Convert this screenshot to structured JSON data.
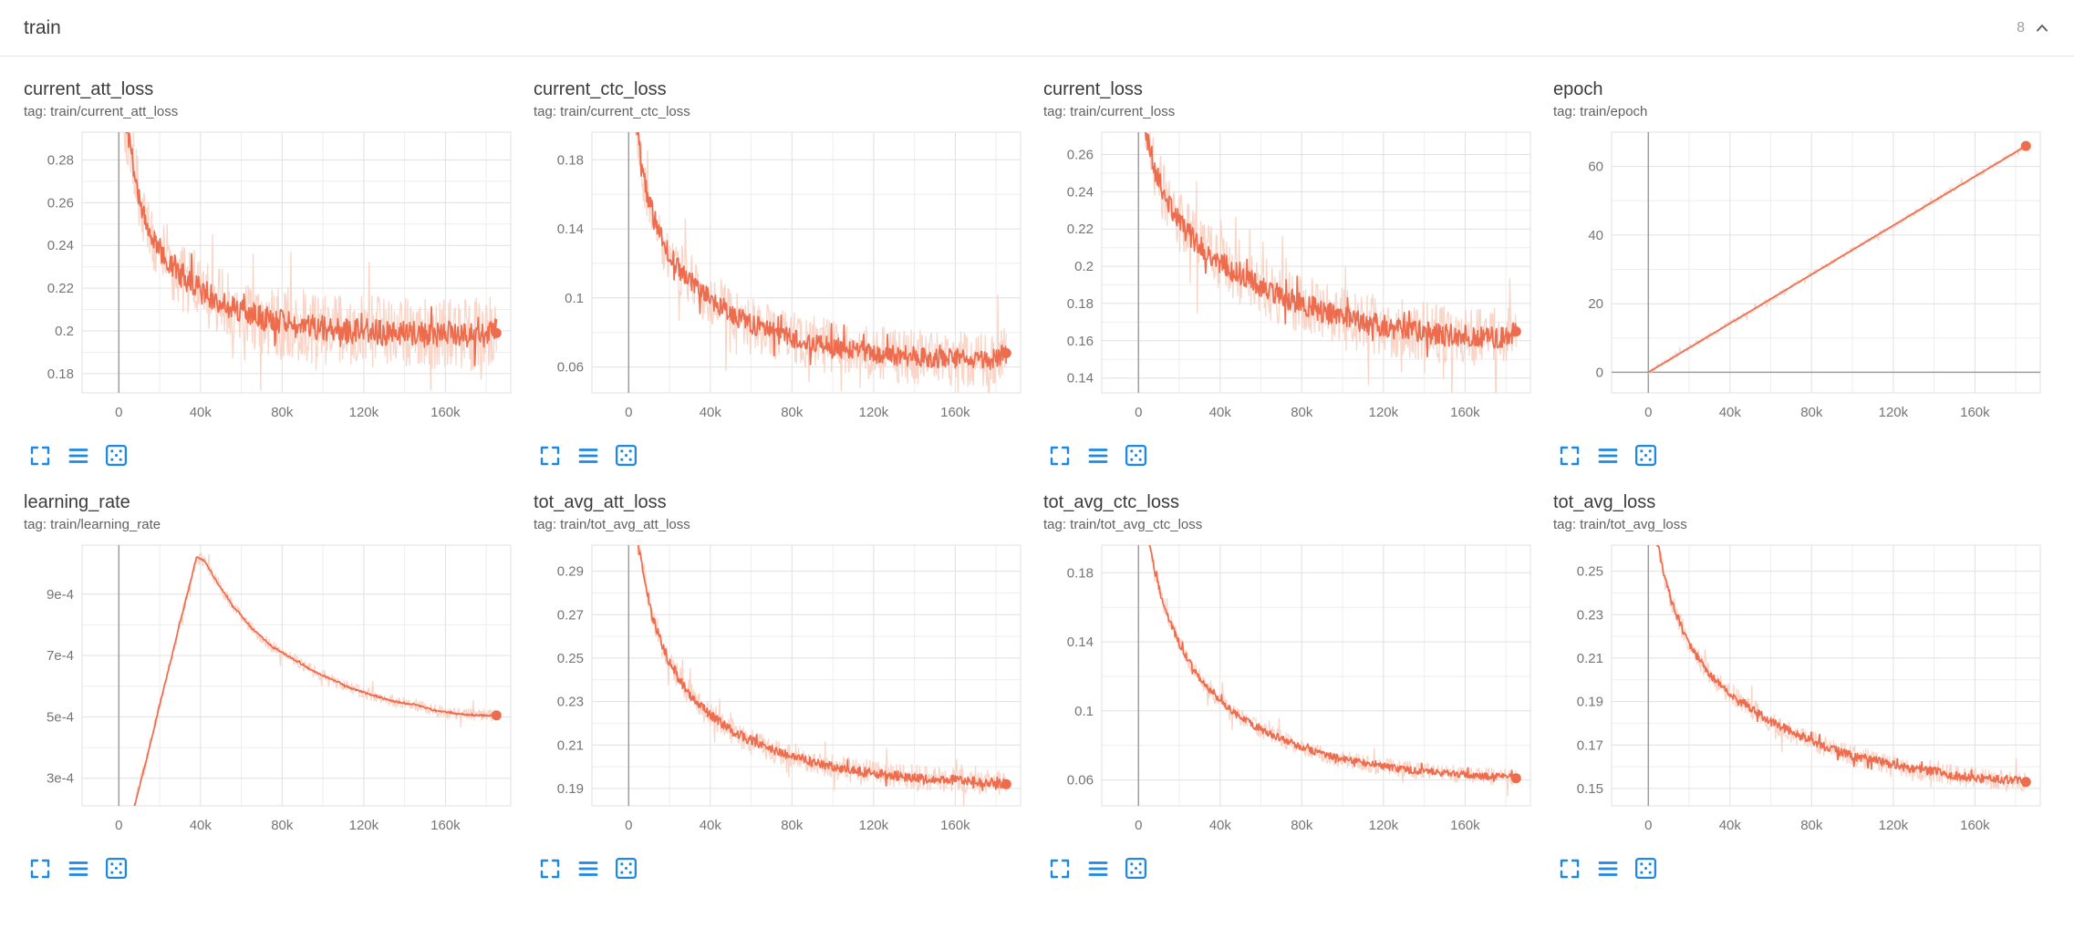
{
  "header": {
    "section_label": "train",
    "count": "8"
  },
  "colors": {
    "line": "#ee6c4e",
    "line_raw": "#f8d0c2",
    "grid_major": "#e0e0e0",
    "grid_minor": "#eeeeee",
    "axis_zero": "#9e9e9e",
    "icon_blue": "#1e88e5",
    "tick_text": "#757575"
  },
  "card_actions": [
    {
      "name": "fullscreen",
      "icon": "fullscreen-icon"
    },
    {
      "name": "data-table",
      "icon": "data-table-icon"
    },
    {
      "name": "fit-domain",
      "icon": "fit-domain-icon"
    }
  ],
  "chart_data": [
    {
      "type": "line",
      "title": "current_att_loss",
      "tag": "tag: train/current_att_loss",
      "x_ticks": [
        "0",
        "40k",
        "80k",
        "120k",
        "160k"
      ],
      "x_tick_values": [
        0,
        40000,
        80000,
        120000,
        160000
      ],
      "xlim": [
        -18000,
        192000
      ],
      "y_ticks": [
        "0.18",
        "0.2",
        "0.22",
        "0.24",
        "0.26",
        "0.28"
      ],
      "y_tick_values": [
        0.18,
        0.2,
        0.22,
        0.24,
        0.26,
        0.28
      ],
      "ylim": [
        0.171,
        0.293
      ],
      "trend": [
        [
          0,
          0.36
        ],
        [
          3000,
          0.3
        ],
        [
          6000,
          0.285
        ],
        [
          10000,
          0.262
        ],
        [
          15000,
          0.247
        ],
        [
          20000,
          0.238
        ],
        [
          25000,
          0.232
        ],
        [
          30000,
          0.227
        ],
        [
          40000,
          0.219
        ],
        [
          50000,
          0.213
        ],
        [
          60000,
          0.209
        ],
        [
          70000,
          0.206
        ],
        [
          80000,
          0.204
        ],
        [
          90000,
          0.202
        ],
        [
          100000,
          0.201
        ],
        [
          110000,
          0.2
        ],
        [
          120000,
          0.2
        ],
        [
          130000,
          0.199
        ],
        [
          140000,
          0.199
        ],
        [
          150000,
          0.198
        ],
        [
          160000,
          0.199
        ],
        [
          170000,
          0.198
        ],
        [
          178000,
          0.198
        ],
        [
          185000,
          0.2
        ]
      ],
      "noise": 0.006,
      "raw_noise": 0.017,
      "final": 0.199
    },
    {
      "type": "line",
      "title": "current_ctc_loss",
      "tag": "tag: train/current_ctc_loss",
      "x_ticks": [
        "0",
        "40k",
        "80k",
        "120k",
        "160k"
      ],
      "x_tick_values": [
        0,
        40000,
        80000,
        120000,
        160000
      ],
      "xlim": [
        -18000,
        192000
      ],
      "y_ticks": [
        "0.06",
        "0.1",
        "0.14",
        "0.18"
      ],
      "y_tick_values": [
        0.06,
        0.1,
        0.14,
        0.18
      ],
      "ylim": [
        0.045,
        0.196
      ],
      "trend": [
        [
          0,
          0.24
        ],
        [
          4000,
          0.2
        ],
        [
          8000,
          0.165
        ],
        [
          12000,
          0.148
        ],
        [
          16000,
          0.135
        ],
        [
          20000,
          0.125
        ],
        [
          25000,
          0.116
        ],
        [
          30000,
          0.11
        ],
        [
          40000,
          0.099
        ],
        [
          50000,
          0.091
        ],
        [
          60000,
          0.085
        ],
        [
          70000,
          0.08
        ],
        [
          80000,
          0.077
        ],
        [
          90000,
          0.074
        ],
        [
          100000,
          0.071
        ],
        [
          110000,
          0.07
        ],
        [
          120000,
          0.068
        ],
        [
          130000,
          0.067
        ],
        [
          140000,
          0.066
        ],
        [
          150000,
          0.065
        ],
        [
          160000,
          0.065
        ],
        [
          170000,
          0.064
        ],
        [
          178000,
          0.064
        ],
        [
          185000,
          0.068
        ]
      ],
      "noise": 0.006,
      "raw_noise": 0.016,
      "final": 0.068
    },
    {
      "type": "line",
      "title": "current_loss",
      "tag": "tag: train/current_loss",
      "x_ticks": [
        "0",
        "40k",
        "80k",
        "120k",
        "160k"
      ],
      "x_tick_values": [
        0,
        40000,
        80000,
        120000,
        160000
      ],
      "xlim": [
        -18000,
        192000
      ],
      "y_ticks": [
        "0.14",
        "0.16",
        "0.18",
        "0.2",
        "0.22",
        "0.24",
        "0.26"
      ],
      "y_tick_values": [
        0.14,
        0.16,
        0.18,
        0.2,
        0.22,
        0.24,
        0.26
      ],
      "ylim": [
        0.132,
        0.272
      ],
      "trend": [
        [
          0,
          0.3
        ],
        [
          4000,
          0.27
        ],
        [
          8000,
          0.252
        ],
        [
          12000,
          0.24
        ],
        [
          16000,
          0.231
        ],
        [
          20000,
          0.224
        ],
        [
          25000,
          0.217
        ],
        [
          30000,
          0.211
        ],
        [
          40000,
          0.202
        ],
        [
          50000,
          0.195
        ],
        [
          60000,
          0.189
        ],
        [
          70000,
          0.184
        ],
        [
          80000,
          0.18
        ],
        [
          90000,
          0.176
        ],
        [
          100000,
          0.173
        ],
        [
          110000,
          0.17
        ],
        [
          120000,
          0.168
        ],
        [
          130000,
          0.166
        ],
        [
          140000,
          0.165
        ],
        [
          150000,
          0.163
        ],
        [
          160000,
          0.163
        ],
        [
          170000,
          0.162
        ],
        [
          178000,
          0.162
        ],
        [
          185000,
          0.165
        ]
      ],
      "noise": 0.006,
      "raw_noise": 0.016,
      "final": 0.165
    },
    {
      "type": "line",
      "title": "epoch",
      "tag": "tag: train/epoch",
      "x_ticks": [
        "0",
        "40k",
        "80k",
        "120k",
        "160k"
      ],
      "x_tick_values": [
        0,
        40000,
        80000,
        120000,
        160000
      ],
      "xlim": [
        -18000,
        192000
      ],
      "y_ticks": [
        "0",
        "20",
        "40",
        "60"
      ],
      "y_tick_values": [
        0,
        20,
        40,
        60
      ],
      "ylim": [
        -6,
        70
      ],
      "trend": [
        [
          0,
          0
        ],
        [
          185000,
          66
        ]
      ],
      "noise": 0,
      "raw_noise": 0.8,
      "final": 66
    },
    {
      "type": "line",
      "title": "learning_rate",
      "tag": "tag: train/learning_rate",
      "x_ticks": [
        "0",
        "40k",
        "80k",
        "120k",
        "160k"
      ],
      "x_tick_values": [
        0,
        40000,
        80000,
        120000,
        160000
      ],
      "xlim": [
        -18000,
        192000
      ],
      "y_ticks": [
        "3e-4",
        "5e-4",
        "7e-4",
        "9e-4"
      ],
      "y_tick_values": [
        0.0003,
        0.0005,
        0.0007,
        0.0009
      ],
      "ylim": [
        0.00021,
        0.00106
      ],
      "trend": [
        [
          0,
          1e-05
        ],
        [
          10000,
          0.00027
        ],
        [
          15000,
          0.0004
        ],
        [
          20000,
          0.00054
        ],
        [
          25000,
          0.00067
        ],
        [
          30000,
          0.00081
        ],
        [
          34000,
          0.00091
        ],
        [
          38000,
          0.00102
        ],
        [
          42000,
          0.00101
        ],
        [
          48000,
          0.00094
        ],
        [
          55000,
          0.00087
        ],
        [
          65000,
          0.00079
        ],
        [
          75000,
          0.00073
        ],
        [
          85000,
          0.00069
        ],
        [
          95000,
          0.00065
        ],
        [
          105000,
          0.00062
        ],
        [
          115000,
          0.00059
        ],
        [
          125000,
          0.00057
        ],
        [
          135000,
          0.00055
        ],
        [
          145000,
          0.00054
        ],
        [
          155000,
          0.00052
        ],
        [
          165000,
          0.00051
        ],
        [
          175000,
          0.000505
        ],
        [
          185000,
          0.000505
        ]
      ],
      "noise": 3e-06,
      "raw_noise": 2e-05,
      "final": 0.000505
    },
    {
      "type": "line",
      "title": "tot_avg_att_loss",
      "tag": "tag: train/tot_avg_att_loss",
      "x_ticks": [
        "0",
        "40k",
        "80k",
        "120k",
        "160k"
      ],
      "x_tick_values": [
        0,
        40000,
        80000,
        120000,
        160000
      ],
      "xlim": [
        -18000,
        192000
      ],
      "y_ticks": [
        "0.19",
        "0.21",
        "0.23",
        "0.25",
        "0.27",
        "0.29"
      ],
      "y_tick_values": [
        0.19,
        0.21,
        0.23,
        0.25,
        0.27,
        0.29
      ],
      "ylim": [
        0.182,
        0.302
      ],
      "trend": [
        [
          0,
          0.34
        ],
        [
          4000,
          0.305
        ],
        [
          8000,
          0.285
        ],
        [
          12000,
          0.268
        ],
        [
          16000,
          0.257
        ],
        [
          20000,
          0.248
        ],
        [
          25000,
          0.24
        ],
        [
          30000,
          0.233
        ],
        [
          35000,
          0.228
        ],
        [
          40000,
          0.224
        ],
        [
          50000,
          0.217
        ],
        [
          60000,
          0.212
        ],
        [
          70000,
          0.208
        ],
        [
          80000,
          0.205
        ],
        [
          90000,
          0.202
        ],
        [
          100000,
          0.2
        ],
        [
          110000,
          0.198
        ],
        [
          120000,
          0.197
        ],
        [
          130000,
          0.196
        ],
        [
          140000,
          0.195
        ],
        [
          150000,
          0.194
        ],
        [
          160000,
          0.194
        ],
        [
          170000,
          0.193
        ],
        [
          178000,
          0.193
        ],
        [
          185000,
          0.192
        ]
      ],
      "noise": 0.0022,
      "raw_noise": 0.006,
      "final": 0.192
    },
    {
      "type": "line",
      "title": "tot_avg_ctc_loss",
      "tag": "tag: train/tot_avg_ctc_loss",
      "x_ticks": [
        "0",
        "40k",
        "80k",
        "120k",
        "160k"
      ],
      "x_tick_values": [
        0,
        40000,
        80000,
        120000,
        160000
      ],
      "xlim": [
        -18000,
        192000
      ],
      "y_ticks": [
        "0.06",
        "0.1",
        "0.14",
        "0.18"
      ],
      "y_tick_values": [
        0.06,
        0.1,
        0.14,
        0.18
      ],
      "ylim": [
        0.045,
        0.196
      ],
      "trend": [
        [
          0,
          0.23
        ],
        [
          4000,
          0.205
        ],
        [
          8000,
          0.18
        ],
        [
          12000,
          0.163
        ],
        [
          16000,
          0.15
        ],
        [
          20000,
          0.139
        ],
        [
          25000,
          0.128
        ],
        [
          30000,
          0.119
        ],
        [
          35000,
          0.112
        ],
        [
          40000,
          0.106
        ],
        [
          50000,
          0.096
        ],
        [
          60000,
          0.089
        ],
        [
          70000,
          0.084
        ],
        [
          80000,
          0.079
        ],
        [
          90000,
          0.075
        ],
        [
          100000,
          0.072
        ],
        [
          110000,
          0.07
        ],
        [
          120000,
          0.068
        ],
        [
          130000,
          0.066
        ],
        [
          140000,
          0.065
        ],
        [
          150000,
          0.064
        ],
        [
          160000,
          0.063
        ],
        [
          170000,
          0.062
        ],
        [
          178000,
          0.062
        ],
        [
          185000,
          0.061
        ]
      ],
      "noise": 0.002,
      "raw_noise": 0.005,
      "final": 0.061
    },
    {
      "type": "line",
      "title": "tot_avg_loss",
      "tag": "tag: train/tot_avg_loss",
      "x_ticks": [
        "0",
        "40k",
        "80k",
        "120k",
        "160k"
      ],
      "x_tick_values": [
        0,
        40000,
        80000,
        120000,
        160000
      ],
      "xlim": [
        -18000,
        192000
      ],
      "y_ticks": [
        "0.15",
        "0.17",
        "0.19",
        "0.21",
        "0.23",
        "0.25"
      ],
      "y_tick_values": [
        0.15,
        0.17,
        0.19,
        0.21,
        0.23,
        0.25
      ],
      "ylim": [
        0.142,
        0.262
      ],
      "trend": [
        [
          0,
          0.29
        ],
        [
          4000,
          0.265
        ],
        [
          8000,
          0.247
        ],
        [
          12000,
          0.234
        ],
        [
          16000,
          0.225
        ],
        [
          20000,
          0.217
        ],
        [
          25000,
          0.209
        ],
        [
          30000,
          0.203
        ],
        [
          35000,
          0.198
        ],
        [
          40000,
          0.194
        ],
        [
          50000,
          0.187
        ],
        [
          60000,
          0.181
        ],
        [
          70000,
          0.176
        ],
        [
          80000,
          0.172
        ],
        [
          90000,
          0.168
        ],
        [
          100000,
          0.165
        ],
        [
          110000,
          0.163
        ],
        [
          120000,
          0.161
        ],
        [
          130000,
          0.159
        ],
        [
          140000,
          0.158
        ],
        [
          150000,
          0.156
        ],
        [
          160000,
          0.155
        ],
        [
          170000,
          0.154
        ],
        [
          178000,
          0.154
        ],
        [
          185000,
          0.153
        ]
      ],
      "noise": 0.002,
      "raw_noise": 0.005,
      "final": 0.153
    }
  ]
}
